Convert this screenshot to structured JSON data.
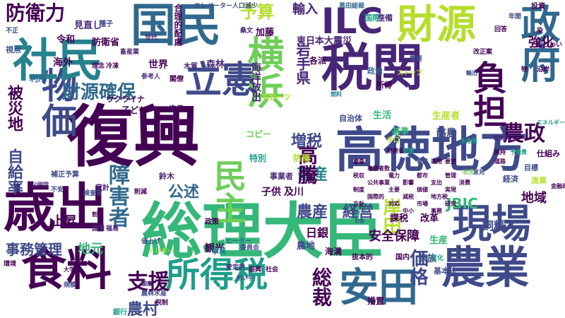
{
  "palette": [
    "#440154",
    "#482677",
    "#3e4a89",
    "#31688e",
    "#26828e",
    "#1f9e89",
    "#35b779",
    "#6ece58",
    "#b5de2b",
    "#fde725"
  ],
  "words": {
    "w1": "復興",
    "w2": "総理大臣",
    "w3": "高徳地方",
    "w4": "歳出",
    "w5": "税関",
    "w6": "国民",
    "w7": "食料",
    "w8": "農業",
    "w9": "現場",
    "w10": "財源",
    "w11": "所得税",
    "w12": "安田",
    "w13": "政府",
    "w14": "負担",
    "w15": "物価",
    "w16": "社民",
    "w17": "立憲",
    "w18": "横浜",
    "w19": "民主",
    "w20": "ILC",
    "w21": "農政",
    "w22": "防衛力",
    "w23": "財源確保",
    "w24": "事務管理",
    "w25": "障害者",
    "w26": "支援",
    "w27": "農村",
    "w28": "経営",
    "w29": "総裁",
    "w30": "価格",
    "w31": "農産",
    "w32": "岸田",
    "w33": "日銀",
    "w34": "安全保障",
    "w35": "地域",
    "w36": "JBIC",
    "w37": "飼料",
    "w38": "畜産",
    "w39": "増税",
    "w40": "公述",
    "w41": "高騰",
    "w42": "自給率",
    "w43": "被災地",
    "w44": "予算",
    "w45": "輸入",
    "w46": "強化",
    "w47": "岩手県",
    "w48": "海洋放出",
    "w49": "東日本大震災",
    "w50": "エレベーター人口減少",
    "w51": "黒田総裁",
    "w52": "整備",
    "w53": "国際",
    "w54": "投資",
    "w55": "生活",
    "w56": "生産者",
    "w57": "酪農",
    "w58": "基準",
    "w59": "地元",
    "w60": "生産",
    "w61": "農地",
    "w62": "家族",
    "w63": "改革",
    "w64": "上昇",
    "w65": "観光",
    "w66": "世界",
    "w67": "森林",
    "w68": "加藤",
    "w69": "各派",
    "w70": "政治",
    "w71": "所得",
    "w72": "利用",
    "w73": "海外",
    "w74": "令和",
    "w75": "防衛省",
    "w76": "見直し",
    "w77": "種子",
    "w78": "不正",
    "w79": "視点",
    "w80": "子ども",
    "w81": "ウクライナ",
    "w82": "木質",
    "w83": "スポーツ",
    "w84": "閣僚",
    "w85": "次元",
    "w86": "鈴木",
    "w87": "子供",
    "w88": "及川",
    "w89": "事業者",
    "w90": "コピー",
    "w91": "特別",
    "w92": "防備",
    "w93": "課税",
    "w94": "手口",
    "w95": "自治体",
    "w96": "仕組み",
    "w97": "目標",
    "w98": "経済",
    "w99": "漁業",
    "w100": "国内",
    "w101": "事業",
    "w102": "銀行",
    "w103": "措置",
    "w104": "基本法",
    "w105": "海溝",
    "w106": "抜本的",
    "w107": "安定的",
    "w108": "振興",
    "w109": "社会",
    "w110": "委員会",
    "w111": "ヒーター",
    "w112": "変化",
    "w113": "政策",
    "w114": "家計",
    "w115": "補正予算",
    "w116": "検査官",
    "w117": "削減",
    "w118": "不安",
    "w119": "公明党",
    "w120": "環境",
    "w121": "大学",
    "w122": "税制",
    "w123": "御魔",
    "w124": "規模",
    "w125": "農林水産",
    "w126": "担い手",
    "w127": "トリガー",
    "w128": "値上げ",
    "w129": "割合",
    "w130": "国債",
    "w131": "福島",
    "w132": "参考人",
    "w133": "理念",
    "w134": "冷凍",
    "w135": "畜産業",
    "w136": "合理的配慮",
    "w137": "桑文",
    "w138": "世代",
    "w139": "需要",
    "w140": "ストップ",
    "w141": "回答",
    "w142": "改正案",
    "w143": "なりわい",
    "w144": "年間",
    "w145": "染",
    "w146": "沿岸",
    "w147": "物",
    "w148": "電気代",
    "w149": "水産業",
    "w150": "エネルギー",
    "w151": "維持",
    "w152": "予備費",
    "w153": "道路",
    "w154": "金融政策",
    "w155": "クロマグロ",
    "w156": "お金",
    "w157": "燃料",
    "w158": "輸出",
    "w159": "状況",
    "w160": "意見",
    "w161": "財務省",
    "w162": "保護",
    "w163": "専業",
    "w164": "適用",
    "w165": "要望",
    "w166": "審査",
    "w167": "事業者数",
    "w168": "税収",
    "w169": "公共事業",
    "w170": "制度",
    "w171": "国際的",
    "w172": "方針",
    "w173": "電力",
    "w174": "影響",
    "w175": "都市",
    "w176": "支出",
    "w177": "管理",
    "w178": "消費",
    "w179": "主要",
    "w180": "減税",
    "w181": "価値",
    "w182": "地方税",
    "w183": "実現",
    "w184": "対応",
    "w185": "中小",
    "w186": "市場",
    "w187": "事務",
    "w188": "研究"
  }
}
